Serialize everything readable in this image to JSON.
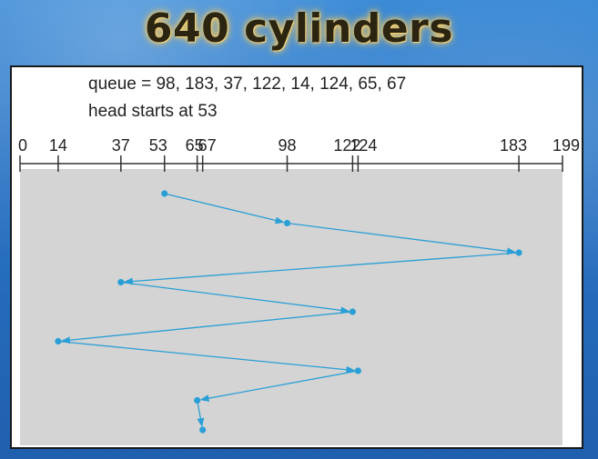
{
  "slide": {
    "title": "640 cylinders"
  },
  "figure": {
    "queue_text": "queue = 98, 183, 37, 122, 14, 124, 65, 67",
    "head_text": "head starts at 53",
    "axis": {
      "min": 0,
      "max": 199,
      "ticks": [
        0,
        14,
        37,
        53,
        65,
        67,
        98,
        122,
        124,
        183,
        199
      ],
      "tick_labels": [
        "0",
        "14",
        "37",
        "53",
        "65",
        "67",
        "98",
        "122",
        "124",
        "183",
        "199"
      ]
    },
    "head_path": [
      53,
      98,
      183,
      37,
      122,
      14,
      124,
      65,
      67
    ],
    "colors": {
      "path": "#2a9fd6",
      "chart_bg": "#d4d4d4",
      "axis": "#333333"
    }
  }
}
